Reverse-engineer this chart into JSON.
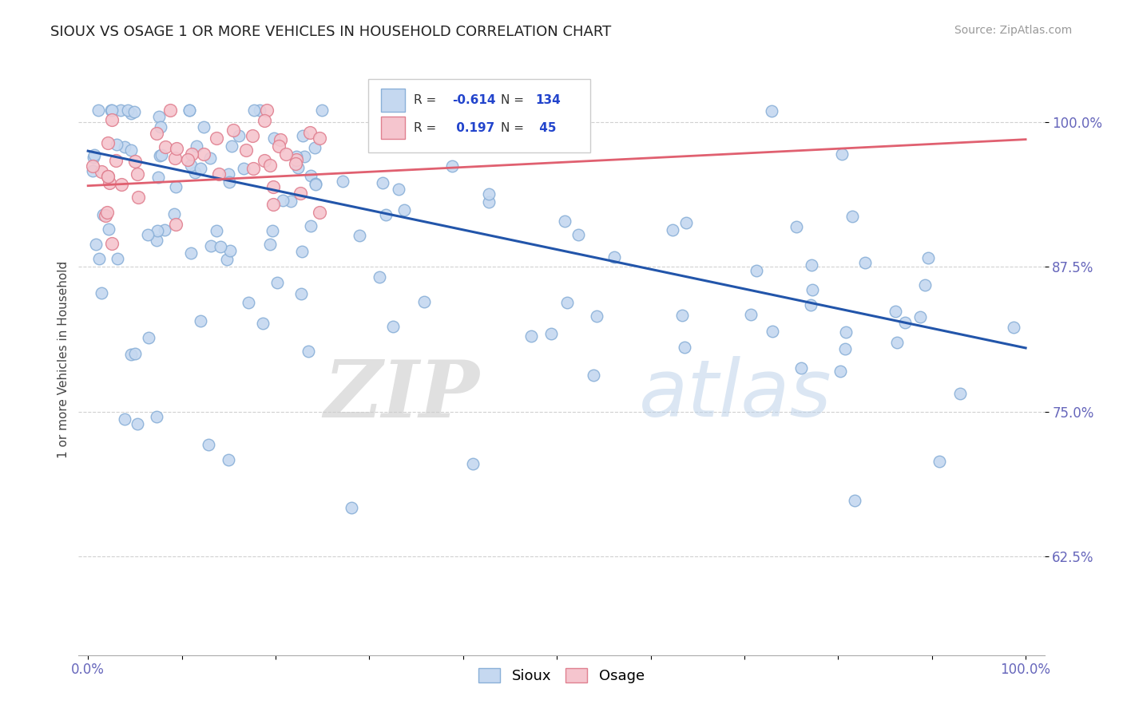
{
  "title": "SIOUX VS OSAGE 1 OR MORE VEHICLES IN HOUSEHOLD CORRELATION CHART",
  "source_text": "Source: ZipAtlas.com",
  "ylabel": "1 or more Vehicles in Household",
  "background_color": "#ffffff",
  "grid_color": "#cccccc",
  "sioux_color": "#c5d8f0",
  "sioux_edge_color": "#8ab0d8",
  "osage_color": "#f5c5ce",
  "osage_edge_color": "#e08090",
  "sioux_line_color": "#2255aa",
  "osage_line_color": "#e06070",
  "sioux_R": -0.614,
  "sioux_N": 134,
  "osage_R": 0.197,
  "osage_N": 45,
  "watermark_zip": "ZIP",
  "watermark_atlas": "atlas",
  "tick_color": "#6666bb"
}
